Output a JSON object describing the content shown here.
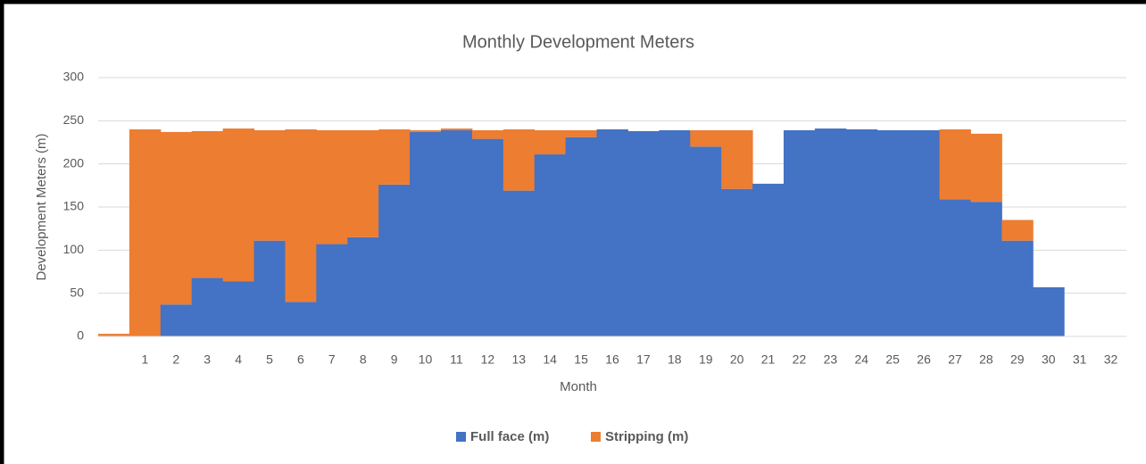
{
  "chart_data": {
    "type": "stacked_bar",
    "title": "Monthly Development Meters",
    "x_label": "Month",
    "y_label": "Development Meters (m)",
    "categories": [
      null,
      1,
      2,
      3,
      4,
      5,
      6,
      7,
      8,
      9,
      10,
      11,
      12,
      13,
      14,
      15,
      16,
      17,
      18,
      19,
      20,
      21,
      22,
      23,
      24,
      25,
      26,
      27,
      28,
      29,
      30,
      31,
      32
    ],
    "series": [
      {
        "name": "Full face (m)",
        "color": "#4472c4",
        "values": [
          0,
          0,
          37,
          68,
          64,
          111,
          40,
          107,
          115,
          176,
          237,
          239,
          229,
          169,
          211,
          231,
          240,
          238,
          239,
          220,
          171,
          177,
          239,
          241,
          240,
          239,
          239,
          159,
          156,
          111,
          57,
          0,
          0
        ]
      },
      {
        "name": "Stripping (m)",
        "color": "#ed7d31",
        "values": [
          3,
          240,
          200,
          170,
          177,
          128,
          200,
          132,
          124,
          64,
          2,
          2,
          10,
          71,
          28,
          8,
          0,
          0,
          0,
          19,
          68,
          0,
          0,
          0,
          0,
          0,
          0,
          81,
          79,
          24,
          0,
          0,
          0
        ]
      }
    ],
    "ylim": [
      0,
      300
    ],
    "yticks": [
      0,
      50,
      100,
      150,
      200,
      250,
      300
    ],
    "grid": true,
    "legend": "bottom"
  }
}
